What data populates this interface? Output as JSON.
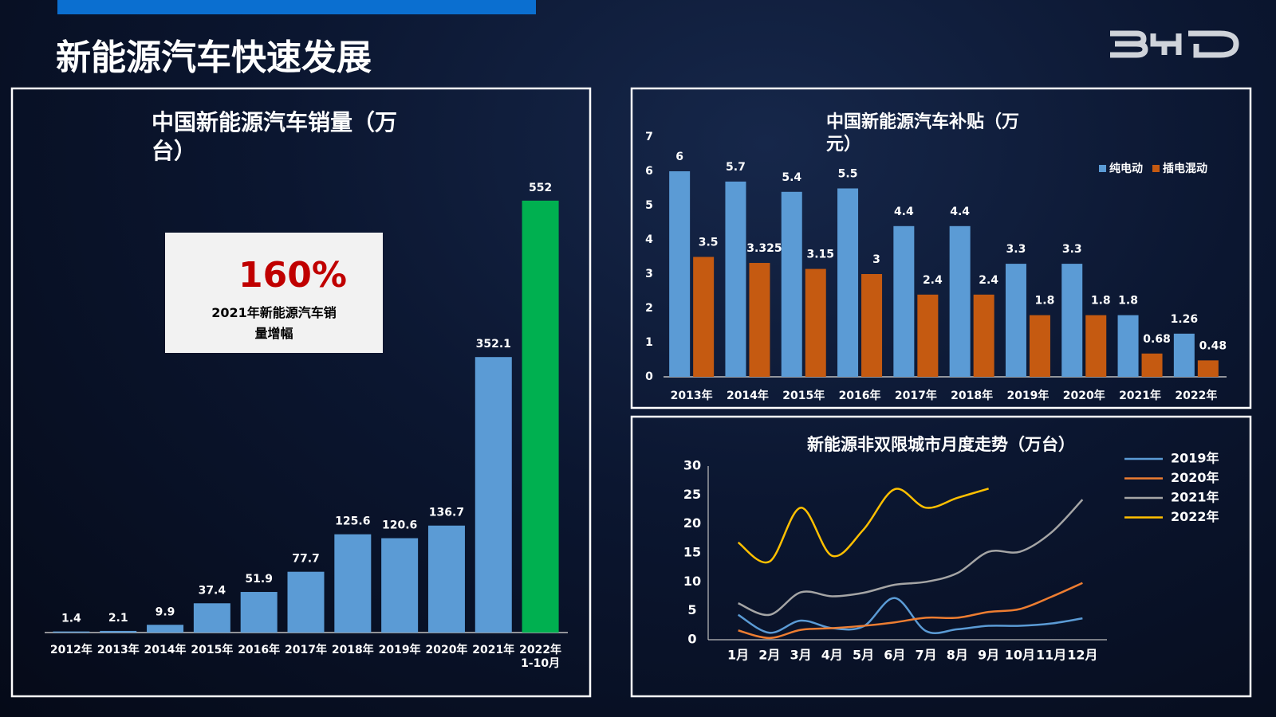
{
  "title": "新能源汽车快速发展",
  "chart_data": [
    {
      "type": "bar",
      "title": "中国新能源汽车销量（万台）",
      "categories": [
        "2012年",
        "2013年",
        "2014年",
        "2015年",
        "2016年",
        "2017年",
        "2018年",
        "2019年",
        "2020年",
        "2021年",
        "2022年\n1-10月"
      ],
      "values": [
        1.4,
        2.1,
        9.9,
        37.4,
        51.9,
        77.7,
        125.6,
        120.6,
        136.7,
        352.1,
        552
      ],
      "colors": [
        "#5b9bd5",
        "#5b9bd5",
        "#5b9bd5",
        "#5b9bd5",
        "#5b9bd5",
        "#5b9bd5",
        "#5b9bd5",
        "#5b9bd5",
        "#5b9bd5",
        "#5b9bd5",
        "#00b050"
      ],
      "ylim": [
        0,
        560
      ],
      "annotation": {
        "value": "160%",
        "text": "2021年新能源汽车销量增幅"
      }
    },
    {
      "type": "bar",
      "title": "中国新能源汽车补贴（万元）",
      "categories": [
        "2013年",
        "2014年",
        "2015年",
        "2016年",
        "2017年",
        "2018年",
        "2019年",
        "2020年",
        "2021年",
        "2022年"
      ],
      "series": [
        {
          "name": "纯电动",
          "color": "#5b9bd5",
          "values": [
            6,
            5.7,
            5.4,
            5.5,
            4.4,
            4.4,
            3.3,
            3.3,
            1.8,
            1.26
          ]
        },
        {
          "name": "插电混动",
          "color": "#c55a11",
          "values": [
            3.5,
            3.325,
            3.15,
            3,
            2.4,
            2.4,
            1.8,
            1.8,
            0.68,
            0.48
          ]
        }
      ],
      "ylim": [
        0,
        7
      ],
      "yticks": [
        0,
        1,
        2,
        3,
        4,
        5,
        6,
        7
      ],
      "legend": "top-right"
    },
    {
      "type": "line",
      "title": "新能源非双限城市月度走势（万台）",
      "categories": [
        "1月",
        "2月",
        "3月",
        "4月",
        "5月",
        "6月",
        "7月",
        "8月",
        "9月",
        "10月",
        "11月",
        "12月"
      ],
      "series": [
        {
          "name": "2019年",
          "color": "#5b9bd5",
          "values": [
            4.3,
            1.2,
            3.3,
            2.0,
            2.3,
            7.2,
            1.5,
            1.8,
            2.4,
            2.4,
            2.8,
            3.7
          ]
        },
        {
          "name": "2020年",
          "color": "#ed7d31",
          "values": [
            1.6,
            0.3,
            1.7,
            2.0,
            2.4,
            3.0,
            3.8,
            3.8,
            4.8,
            5.3,
            7.4,
            9.8
          ]
        },
        {
          "name": "2021年",
          "color": "#a5a5a5",
          "values": [
            6.3,
            4.3,
            8.2,
            7.5,
            8.1,
            9.5,
            10,
            11.5,
            15.2,
            15.2,
            18.5,
            24.2
          ]
        },
        {
          "name": "2022年",
          "color": "#ffc000",
          "values": [
            16.8,
            13.5,
            22.8,
            14.5,
            19,
            26,
            22.8,
            24.5,
            26.1,
            null,
            null,
            null
          ]
        }
      ],
      "ylim": [
        0,
        30
      ],
      "yticks": [
        0,
        5,
        10,
        15,
        20,
        25,
        30
      ],
      "legend": "right"
    }
  ]
}
